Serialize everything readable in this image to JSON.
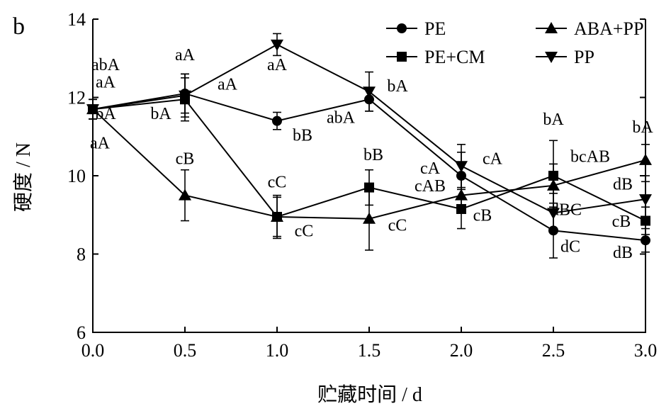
{
  "panel_label": "b",
  "chart_data": {
    "type": "line",
    "xlabel": "贮藏时间 / d",
    "ylabel": "硬度 / N",
    "x": [
      0.0,
      0.5,
      1.0,
      1.5,
      2.0,
      2.5,
      3.0
    ],
    "x_tick_labels": [
      "0.0",
      "0.5",
      "1.0",
      "1.5",
      "2.0",
      "2.5",
      "3.0"
    ],
    "xlim": [
      0.0,
      3.0
    ],
    "ylim": [
      6,
      14
    ],
    "y_ticks": [
      6,
      8,
      10,
      12,
      14
    ],
    "y_tick_labels": [
      "6",
      "8",
      "10",
      "12",
      "14"
    ],
    "grid": false,
    "legend_position": "top-right",
    "series": [
      {
        "name": "PE",
        "marker": "circle",
        "values": [
          11.7,
          12.1,
          11.4,
          11.95,
          10.0,
          8.6,
          8.35
        ],
        "errors": [
          0.25,
          0.5,
          0.22,
          0.3,
          0.6,
          0.7,
          0.3
        ]
      },
      {
        "name": "PE+CM",
        "marker": "square",
        "values": [
          11.7,
          11.95,
          8.95,
          9.7,
          9.15,
          10.0,
          8.85
        ],
        "errors": [
          0.25,
          0.55,
          0.55,
          0.45,
          0.5,
          0.9,
          0.35
        ]
      },
      {
        "name": "ABA+PP",
        "marker": "triangle-up",
        "values": [
          11.7,
          9.5,
          8.95,
          8.9,
          9.5,
          9.75,
          10.4
        ],
        "errors": [
          0.25,
          0.65,
          0.5,
          0.8,
          0.45,
          0.55,
          0.4
        ]
      },
      {
        "name": "PP",
        "marker": "triangle-down",
        "values": [
          11.7,
          12.05,
          13.35,
          12.15,
          10.25,
          9.05,
          9.4
        ],
        "errors": [
          0.25,
          0.55,
          0.28,
          0.5,
          0.55,
          0.5,
          0.45
        ]
      }
    ],
    "annotations": [
      {
        "text": "abA",
        "x": 0.0,
        "y": 12.7
      },
      {
        "text": "aA",
        "x": 0.0,
        "y": 12.25
      },
      {
        "text": "bA",
        "x": 0.0,
        "y": 11.45
      },
      {
        "text": "aA",
        "x": 0.0,
        "y": 10.7
      },
      {
        "text": "aA",
        "x": 0.5,
        "y": 12.95
      },
      {
        "text": "bA",
        "x": 0.5,
        "y": 11.45
      },
      {
        "text": "cB",
        "x": 0.5,
        "y": 10.3
      },
      {
        "text": "aA",
        "x": 0.5,
        "y": 12.2
      },
      {
        "text": "aA",
        "x": 1.0,
        "y": 12.7
      },
      {
        "text": "bB",
        "x": 1.0,
        "y": 10.9
      },
      {
        "text": "cC",
        "x": 1.0,
        "y": 9.7
      },
      {
        "text": "cC",
        "x": 1.0,
        "y": 8.45
      },
      {
        "text": "abA",
        "x": 1.5,
        "y": 11.35
      },
      {
        "text": "bA",
        "x": 1.5,
        "y": 12.15
      },
      {
        "text": "bB",
        "x": 1.5,
        "y": 10.4
      },
      {
        "text": "cC",
        "x": 1.5,
        "y": 8.6
      },
      {
        "text": "cA",
        "x": 2.0,
        "y": 10.05
      },
      {
        "text": "cA",
        "x": 2.0,
        "y": 10.3
      },
      {
        "text": "cAB",
        "x": 2.0,
        "y": 9.6
      },
      {
        "text": "cB",
        "x": 2.0,
        "y": 8.85
      },
      {
        "text": "bA",
        "x": 2.5,
        "y": 11.3
      },
      {
        "text": "bcAB",
        "x": 2.5,
        "y": 10.35
      },
      {
        "text": "dBC",
        "x": 2.5,
        "y": 9.0
      },
      {
        "text": "dC",
        "x": 2.5,
        "y": 8.05
      },
      {
        "text": "bA",
        "x": 3.0,
        "y": 11.1
      },
      {
        "text": "dB",
        "x": 3.0,
        "y": 9.65
      },
      {
        "text": "cB",
        "x": 3.0,
        "y": 8.7
      },
      {
        "text": "dB",
        "x": 3.0,
        "y": 7.9
      }
    ]
  }
}
